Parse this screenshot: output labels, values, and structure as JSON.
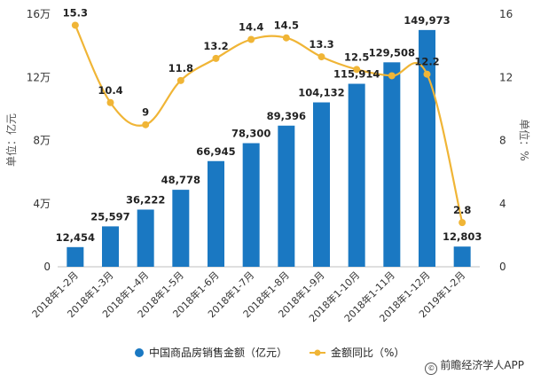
{
  "chart_data": {
    "type": "bar",
    "categories": [
      "2018年1-2月",
      "2018年1-3月",
      "2018年1-4月",
      "2018年1-5月",
      "2018年1-6月",
      "2018年1-7月",
      "2018年1-8月",
      "2018年1-9月",
      "2018年1-10月",
      "2018年1-11月",
      "2018年1-12月",
      "2019年1-2月"
    ],
    "series": [
      {
        "name": "中国商品房销售金额（亿元）",
        "type": "bar",
        "axis": "left",
        "color": "#1a78c2",
        "values": [
          12454,
          25597,
          36222,
          48778,
          66945,
          78300,
          89396,
          104132,
          115914,
          129508,
          149973,
          12803
        ],
        "labels": [
          "12,454",
          "25,597",
          "36,222",
          "48,778",
          "66,945",
          "78,300",
          "89,396",
          "104,132",
          "115,914",
          "129,508",
          "149,973",
          "12,803"
        ]
      },
      {
        "name": "金额同比（%）",
        "type": "line",
        "axis": "right",
        "color": "#f0b536",
        "values": [
          15.3,
          10.4,
          9,
          11.8,
          13.2,
          14.4,
          14.5,
          13.3,
          12.5,
          12.1,
          12.2,
          2.8
        ],
        "labels": [
          "15.3",
          "10.4",
          "9",
          "11.8",
          "13.2",
          "14.4",
          "14.5",
          "13.3",
          "12.5",
          "",
          "12.2",
          "2.8"
        ]
      }
    ],
    "ylabel_left": "单位：亿元",
    "ylabel_right": "单位：%",
    "ylim_left": [
      0,
      160000
    ],
    "ylim_right": [
      0,
      16
    ],
    "yticks_left": [
      0,
      40000,
      80000,
      120000,
      160000
    ],
    "yticks_left_labels": [
      "0",
      "4万",
      "8万",
      "12万",
      "16万"
    ],
    "yticks_right": [
      0,
      4,
      8,
      12,
      16
    ],
    "yticks_right_labels": [
      "0",
      "4",
      "8",
      "12",
      "16"
    ],
    "grid": false,
    "legend_position": "bottom-center",
    "source": "前瞻经济学人APP"
  }
}
